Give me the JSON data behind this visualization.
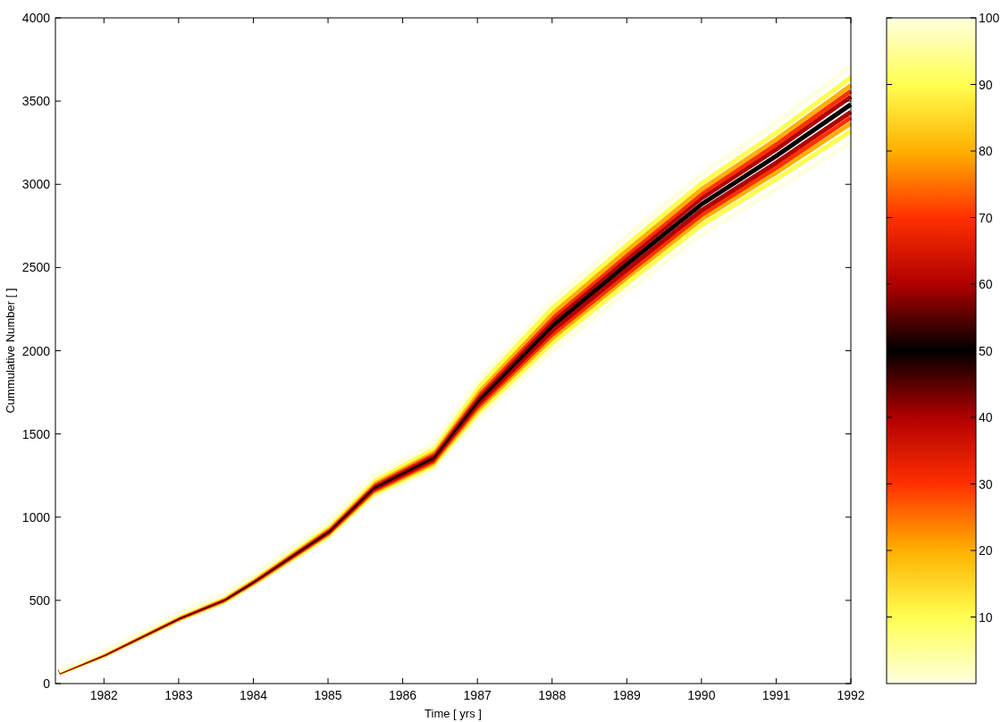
{
  "chart_data": {
    "type": "line",
    "xlabel": "Time [ yrs ]",
    "ylabel": "Cummulative Number [ ]",
    "x": [
      1981.4,
      1982,
      1983,
      1983.6,
      1984,
      1985,
      1985.6,
      1986.4,
      1987,
      1988,
      1989,
      1990,
      1991,
      1992
    ],
    "xlim": [
      1981.35,
      1992
    ],
    "xticks": [
      1982,
      1983,
      1984,
      1985,
      1986,
      1987,
      1988,
      1989,
      1990,
      1991,
      1992
    ],
    "ylim": [
      0,
      4000
    ],
    "yticks": [
      0,
      500,
      1000,
      1500,
      2000,
      2500,
      3000,
      3500,
      4000
    ],
    "clim": [
      0,
      100
    ],
    "cticks": [
      10,
      20,
      30,
      40,
      50,
      60,
      70,
      80,
      90,
      100
    ],
    "grid": false,
    "line_style": "solid",
    "series": [
      {
        "color": "#ffffe0",
        "values": [
          62,
          165,
          378,
          485,
          590,
          875,
          1120,
          1285,
          1590,
          2000,
          2355,
          2700,
          2970,
          3250
        ]
      },
      {
        "color": "#ffff50",
        "values": [
          64,
          170,
          385,
          492,
          599,
          888,
          1138,
          1308,
          1623,
          2045,
          2404,
          2754,
          3030,
          3319
        ]
      },
      {
        "color": "#ffb000",
        "values": [
          66,
          172,
          389,
          498,
          605,
          898,
          1150,
          1322,
          1645,
          2075,
          2438,
          2790,
          3070,
          3365
        ]
      },
      {
        "color": "#ff3000",
        "values": [
          67,
          175,
          392,
          501,
          610,
          904,
          1159,
          1334,
          1662,
          2098,
          2462,
          2817,
          3100,
          3400
        ]
      },
      {
        "color": "#b00000",
        "values": [
          68,
          177,
          396,
          505,
          614,
          911,
          1168,
          1345,
          1678,
          2120,
          2487,
          2844,
          3130,
          3434
        ]
      },
      {
        "color": "#000000",
        "values": [
          70,
          180,
          400,
          510,
          620,
          920,
          1180,
          1360,
          1700,
          2150,
          2520,
          2880,
          3170,
          3480
        ]
      },
      {
        "color": "#b00000",
        "values": [
          72,
          183,
          404,
          515,
          626,
          929,
          1192,
          1375,
          1722,
          2180,
          2553,
          2916,
          3210,
          3526
        ]
      },
      {
        "color": "#ff3000",
        "values": [
          73,
          185,
          408,
          519,
          630,
          936,
          1201,
          1386,
          1738,
          2202,
          2578,
          2943,
          3240,
          3560
        ]
      },
      {
        "color": "#ffb000",
        "values": [
          74,
          188,
          411,
          522,
          635,
          942,
          1210,
          1398,
          1755,
          2225,
          2602,
          2970,
          3270,
          3595
        ]
      },
      {
        "color": "#ffff50",
        "values": [
          76,
          190,
          415,
          528,
          641,
          952,
          1222,
          1412,
          1777,
          2255,
          2636,
          3006,
          3310,
          3641
        ]
      },
      {
        "color": "#ffffe0",
        "values": [
          78,
          195,
          422,
          535,
          650,
          965,
          1240,
          1435,
          1810,
          2300,
          2685,
          3060,
          3370,
          3710
        ]
      }
    ]
  }
}
